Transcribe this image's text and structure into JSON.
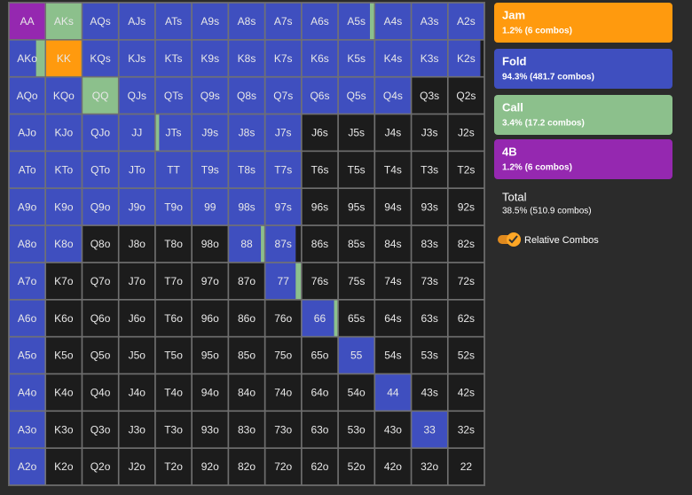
{
  "grid": {
    "rows": [
      [
        "AA",
        "AKs",
        "AQs",
        "AJs",
        "ATs",
        "A9s",
        "A8s",
        "A7s",
        "A6s",
        "A5s",
        "A4s",
        "A3s",
        "A2s"
      ],
      [
        "AKo",
        "KK",
        "KQs",
        "KJs",
        "KTs",
        "K9s",
        "K8s",
        "K7s",
        "K6s",
        "K5s",
        "K4s",
        "K3s",
        "K2s"
      ],
      [
        "AQo",
        "KQo",
        "QQ",
        "QJs",
        "QTs",
        "Q9s",
        "Q8s",
        "Q7s",
        "Q6s",
        "Q5s",
        "Q4s",
        "Q3s",
        "Q2s"
      ],
      [
        "AJo",
        "KJo",
        "QJo",
        "JJ",
        "JTs",
        "J9s",
        "J8s",
        "J7s",
        "J6s",
        "J5s",
        "J4s",
        "J3s",
        "J2s"
      ],
      [
        "ATo",
        "KTo",
        "QTo",
        "JTo",
        "TT",
        "T9s",
        "T8s",
        "T7s",
        "T6s",
        "T5s",
        "T4s",
        "T3s",
        "T2s"
      ],
      [
        "A9o",
        "K9o",
        "Q9o",
        "J9o",
        "T9o",
        "99",
        "98s",
        "97s",
        "96s",
        "95s",
        "94s",
        "93s",
        "92s"
      ],
      [
        "A8o",
        "K8o",
        "Q8o",
        "J8o",
        "T8o",
        "98o",
        "88",
        "87s",
        "86s",
        "85s",
        "84s",
        "83s",
        "82s"
      ],
      [
        "A7o",
        "K7o",
        "Q7o",
        "J7o",
        "T7o",
        "97o",
        "87o",
        "77",
        "76s",
        "75s",
        "74s",
        "73s",
        "72s"
      ],
      [
        "A6o",
        "K6o",
        "Q6o",
        "J6o",
        "T6o",
        "96o",
        "86o",
        "76o",
        "66",
        "65s",
        "64s",
        "63s",
        "62s"
      ],
      [
        "A5o",
        "K5o",
        "Q5o",
        "J5o",
        "T5o",
        "95o",
        "85o",
        "75o",
        "65o",
        "55",
        "54s",
        "53s",
        "52s"
      ],
      [
        "A4o",
        "K4o",
        "Q4o",
        "J4o",
        "T4o",
        "94o",
        "84o",
        "74o",
        "64o",
        "54o",
        "44",
        "43s",
        "42s"
      ],
      [
        "A3o",
        "K3o",
        "Q3o",
        "J3o",
        "T3o",
        "93o",
        "83o",
        "73o",
        "63o",
        "53o",
        "43o",
        "33",
        "32s"
      ],
      [
        "A2o",
        "K2o",
        "Q2o",
        "J2o",
        "T2o",
        "92o",
        "82o",
        "72o",
        "62o",
        "52o",
        "42o",
        "32o",
        "22"
      ]
    ],
    "fills": [
      [
        "B",
        "C",
        "F",
        "F",
        "F",
        "F",
        "F",
        "F",
        "F",
        [
          [
            "F",
            0.88
          ],
          [
            "C",
            0.12
          ]
        ],
        "F",
        "F",
        "F"
      ],
      [
        [
          [
            "F",
            0.75
          ],
          [
            "C",
            0.25
          ]
        ],
        "J",
        "F",
        "F",
        "F",
        "F",
        "F",
        "F",
        "F",
        "F",
        "F",
        "F",
        [
          [
            "F",
            0.9
          ],
          [
            "N",
            0.1
          ]
        ]
      ],
      [
        "F",
        "F",
        "C",
        "F",
        "F",
        "F",
        "F",
        "F",
        "F",
        "F",
        "F",
        "N",
        "N"
      ],
      [
        "F",
        "F",
        "F",
        "F",
        [
          [
            "C",
            0.1
          ],
          [
            "F",
            0.9
          ]
        ],
        "F",
        "F",
        "F",
        "N",
        "N",
        "N",
        "N",
        "N"
      ],
      [
        "F",
        "F",
        "F",
        "F",
        "F",
        "F",
        "F",
        "F",
        "N",
        "N",
        "N",
        "N",
        "N"
      ],
      [
        "F",
        "F",
        "F",
        "F",
        "F",
        "F",
        "F",
        "F",
        "N",
        "N",
        "N",
        "N",
        "N"
      ],
      [
        "F",
        "F",
        "N",
        "N",
        "N",
        "N",
        [
          [
            "F",
            0.9
          ],
          [
            "C",
            0.1
          ]
        ],
        [
          [
            "F",
            0.85
          ],
          [
            "N",
            0.15
          ]
        ],
        "N",
        "N",
        "N",
        "N",
        "N"
      ],
      [
        "F",
        "N",
        "N",
        "N",
        "N",
        "N",
        "N",
        [
          [
            "F",
            0.85
          ],
          [
            "C",
            0.15
          ]
        ],
        "N",
        "N",
        "N",
        "N",
        "N"
      ],
      [
        "F",
        "N",
        "N",
        "N",
        "N",
        "N",
        "N",
        "N",
        [
          [
            "F",
            0.9
          ],
          [
            "C",
            0.1
          ]
        ],
        "N",
        "N",
        "N",
        "N"
      ],
      [
        "F",
        "N",
        "N",
        "N",
        "N",
        "N",
        "N",
        "N",
        "N",
        "F",
        "N",
        "N",
        "N"
      ],
      [
        "F",
        "N",
        "N",
        "N",
        "N",
        "N",
        "N",
        "N",
        "N",
        "N",
        "F",
        "N",
        "N"
      ],
      [
        "F",
        "N",
        "N",
        "N",
        "N",
        "N",
        "N",
        "N",
        "N",
        "N",
        "N",
        "F",
        "N"
      ],
      [
        "F",
        "N",
        "N",
        "N",
        "N",
        "N",
        "N",
        "N",
        "N",
        "N",
        "N",
        "N",
        "N"
      ]
    ],
    "colors": {
      "F": "#3f4fbf",
      "C": "#8cc08c",
      "J": "#ff9a0e",
      "B": "#9528b0",
      "N": "#1c1c1c"
    }
  },
  "legend": [
    {
      "name": "Jam",
      "detail": "1.2% (6 combos)",
      "color": "#ff9a0e"
    },
    {
      "name": "Fold",
      "detail": "94.3% (481.7 combos)",
      "color": "#3f4fbf"
    },
    {
      "name": "Call",
      "detail": "3.4% (17.2 combos)",
      "color": "#8cc08c"
    },
    {
      "name": "4B",
      "detail": "1.2% (6 combos)",
      "color": "#9528b0"
    }
  ],
  "total": {
    "label": "Total",
    "detail": "38.5% (510.9 combos)"
  },
  "toggle": {
    "label": "Relative Combos",
    "on": true
  }
}
